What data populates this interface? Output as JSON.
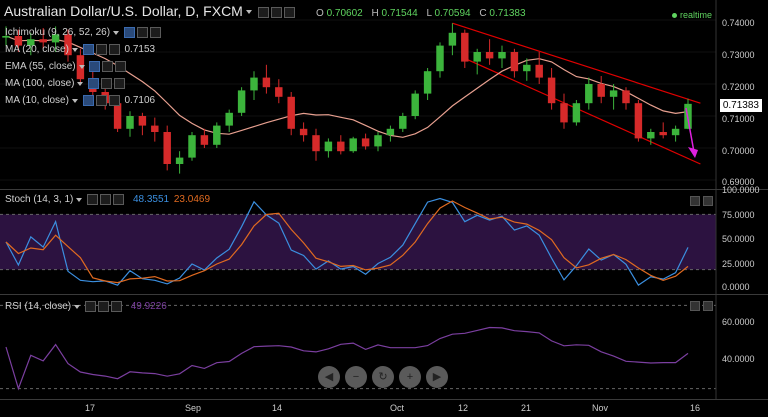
{
  "header": {
    "title": "Australian Dollar/U.S. Dollar, D, FXCM",
    "ohlc": [
      {
        "k": "O",
        "v": "0.70602"
      },
      {
        "k": "H",
        "v": "0.71544"
      },
      {
        "k": "L",
        "v": "0.70594"
      },
      {
        "k": "C",
        "v": "0.71383"
      }
    ],
    "realtime": "realtime"
  },
  "indicators": [
    {
      "label": "Ichimoku (9, 26, 52, 26)",
      "value": ""
    },
    {
      "label": "MA (20, close)",
      "value": "0.7153"
    },
    {
      "label": "EMA (55, close)",
      "value": ""
    },
    {
      "label": "MA (100, close)",
      "value": ""
    },
    {
      "label": "MA (10, close)",
      "value": "0.7106"
    }
  ],
  "price_axis": [
    "0.74000",
    "0.73000",
    "0.72000",
    "0.71000",
    "0.70000",
    "0.69000"
  ],
  "last_price": "0.71383",
  "stoch": {
    "label": "Stoch (14, 3, 1)",
    "k_value": "48.3551",
    "d_value": "23.0469",
    "axis": [
      "100.0000",
      "75.0000",
      "50.0000",
      "25.0000",
      "0.0000"
    ],
    "k_color": "#3b8fe0",
    "d_color": "#e06a20"
  },
  "rsi": {
    "label": "RSI (14, close)",
    "value": "49.9226",
    "axis": [
      "60.0000",
      "40.0000"
    ],
    "color": "#7b3fa0"
  },
  "time_axis": [
    "17",
    "Sep",
    "14",
    "Oct",
    "12",
    "21",
    "Nov",
    "16"
  ],
  "colors": {
    "up": "#3cb43c",
    "down": "#d62a2a",
    "channel": "#e00000",
    "ma": "#e8a090",
    "arrow": "#e020e0",
    "band": "#2c1240"
  },
  "chart_data": {
    "type": "candlestick",
    "title": "Australian Dollar/U.S. Dollar, D, FXCM",
    "ylim": [
      0.69,
      0.74
    ],
    "candles": [
      [
        0.7345,
        0.738,
        0.732,
        0.735
      ],
      [
        0.735,
        0.737,
        0.73,
        0.732
      ],
      [
        0.732,
        0.736,
        0.729,
        0.734
      ],
      [
        0.734,
        0.7375,
        0.731,
        0.733
      ],
      [
        0.733,
        0.738,
        0.73,
        0.7355
      ],
      [
        0.7355,
        0.737,
        0.727,
        0.729
      ],
      [
        0.729,
        0.731,
        0.72,
        0.7215
      ],
      [
        0.7215,
        0.724,
        0.716,
        0.7175
      ],
      [
        0.7175,
        0.72,
        0.712,
        0.714
      ],
      [
        0.714,
        0.715,
        0.705,
        0.706
      ],
      [
        0.706,
        0.7115,
        0.7035,
        0.71
      ],
      [
        0.71,
        0.711,
        0.704,
        0.707
      ],
      [
        0.707,
        0.7095,
        0.702,
        0.705
      ],
      [
        0.705,
        0.707,
        0.693,
        0.695
      ],
      [
        0.695,
        0.699,
        0.692,
        0.697
      ],
      [
        0.697,
        0.705,
        0.696,
        0.704
      ],
      [
        0.704,
        0.706,
        0.7,
        0.701
      ],
      [
        0.701,
        0.708,
        0.7,
        0.707
      ],
      [
        0.707,
        0.712,
        0.705,
        0.711
      ],
      [
        0.711,
        0.719,
        0.71,
        0.718
      ],
      [
        0.718,
        0.724,
        0.715,
        0.722
      ],
      [
        0.722,
        0.726,
        0.717,
        0.719
      ],
      [
        0.719,
        0.7215,
        0.714,
        0.716
      ],
      [
        0.716,
        0.7175,
        0.704,
        0.706
      ],
      [
        0.706,
        0.708,
        0.702,
        0.704
      ],
      [
        0.704,
        0.706,
        0.696,
        0.699
      ],
      [
        0.699,
        0.703,
        0.697,
        0.702
      ],
      [
        0.702,
        0.704,
        0.698,
        0.699
      ],
      [
        0.699,
        0.7035,
        0.6985,
        0.703
      ],
      [
        0.703,
        0.7045,
        0.6995,
        0.7005
      ],
      [
        0.7005,
        0.705,
        0.699,
        0.704
      ],
      [
        0.704,
        0.707,
        0.702,
        0.706
      ],
      [
        0.706,
        0.711,
        0.705,
        0.71
      ],
      [
        0.71,
        0.718,
        0.709,
        0.717
      ],
      [
        0.717,
        0.725,
        0.715,
        0.724
      ],
      [
        0.724,
        0.733,
        0.722,
        0.732
      ],
      [
        0.732,
        0.739,
        0.729,
        0.736
      ],
      [
        0.736,
        0.737,
        0.725,
        0.727
      ],
      [
        0.727,
        0.731,
        0.723,
        0.73
      ],
      [
        0.73,
        0.734,
        0.726,
        0.728
      ],
      [
        0.728,
        0.732,
        0.725,
        0.73
      ],
      [
        0.73,
        0.731,
        0.722,
        0.724
      ],
      [
        0.724,
        0.728,
        0.721,
        0.726
      ],
      [
        0.726,
        0.73,
        0.72,
        0.722
      ],
      [
        0.722,
        0.725,
        0.712,
        0.714
      ],
      [
        0.714,
        0.717,
        0.706,
        0.708
      ],
      [
        0.708,
        0.715,
        0.707,
        0.714
      ],
      [
        0.714,
        0.722,
        0.712,
        0.72
      ],
      [
        0.72,
        0.7225,
        0.714,
        0.716
      ],
      [
        0.716,
        0.72,
        0.712,
        0.718
      ],
      [
        0.718,
        0.719,
        0.712,
        0.714
      ],
      [
        0.714,
        0.715,
        0.702,
        0.703
      ],
      [
        0.703,
        0.706,
        0.701,
        0.705
      ],
      [
        0.705,
        0.708,
        0.703,
        0.704
      ],
      [
        0.704,
        0.707,
        0.702,
        0.706
      ],
      [
        0.706,
        0.7154,
        0.7059,
        0.7138
      ]
    ]
  }
}
